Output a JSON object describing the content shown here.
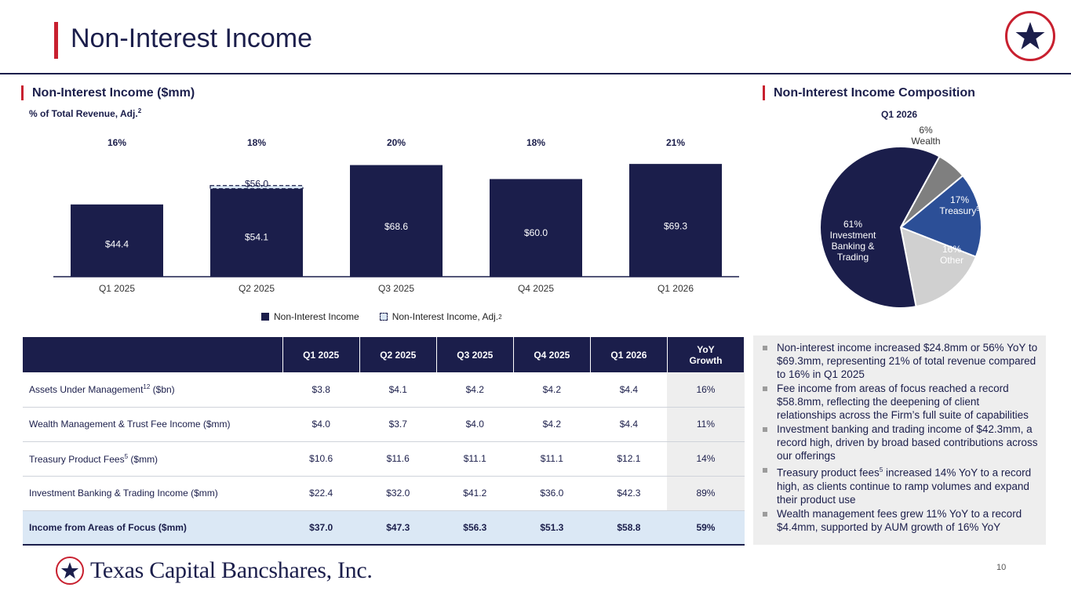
{
  "title": "Non-Interest Income",
  "left_section": {
    "heading": "Non-Interest Income ($mm)",
    "sub_label": "% of Total Revenue, Adj.",
    "sub_label_sup": "2"
  },
  "right_section": {
    "heading": "Non-Interest Income Composition",
    "pie_title": "Q1 2026"
  },
  "legend": {
    "item1": "Non-Interest Income",
    "item2": "Non-Interest Income, Adj.",
    "item2_sup": "2"
  },
  "chart_data": [
    {
      "type": "bar",
      "title": "Non-Interest Income ($mm)",
      "categories": [
        "Q1 2025",
        "Q2 2025",
        "Q3 2025",
        "Q4 2025",
        "Q1 2026"
      ],
      "series": [
        {
          "name": "Non-Interest Income",
          "values": [
            44.4,
            54.1,
            68.6,
            60.0,
            69.3
          ],
          "labels": [
            "$44.4",
            "$54.1",
            "$68.6",
            "$60.0",
            "$69.3"
          ],
          "color": "#1b1e4b"
        },
        {
          "name": "Non-Interest Income, Adj.",
          "values": [
            null,
            56.0,
            null,
            null,
            null
          ],
          "labels": [
            null,
            "$56.0",
            null,
            null,
            null
          ],
          "color": "#dbe8f5"
        }
      ],
      "top_labels": [
        "16%",
        "18%",
        "20%",
        "18%",
        "21%"
      ],
      "ylim": [
        0,
        80
      ]
    },
    {
      "type": "pie",
      "title": "Q1 2026",
      "slices": [
        {
          "label": "Wealth",
          "pct_label": "6%",
          "value": 6,
          "color": "#7f7f7f"
        },
        {
          "label": "Treasury",
          "label_sup": "5",
          "pct_label": "17%",
          "value": 17,
          "color": "#2c4f97"
        },
        {
          "label": "Other",
          "pct_label": "16%",
          "value": 16,
          "color": "#d0d0d0"
        },
        {
          "label": "Investment Banking & Trading",
          "pct_label": "61%",
          "value": 61,
          "color": "#1b1e4b"
        }
      ]
    }
  ],
  "table": {
    "headers": [
      "",
      "Q1 2025",
      "Q2 2025",
      "Q3 2025",
      "Q4 2025",
      "Q1 2026",
      "YoY",
      "Growth"
    ],
    "rows": [
      {
        "label": "Assets Under Management",
        "sup": "12",
        "suffix": " ($bn)",
        "values": [
          "$3.8",
          "$4.1",
          "$4.2",
          "$4.2",
          "$4.4"
        ],
        "yoy": "16%"
      },
      {
        "label": "Wealth Management & Trust Fee Income ($mm)",
        "sup": "",
        "suffix": "",
        "values": [
          "$4.0",
          "$3.7",
          "$4.0",
          "$4.2",
          "$4.4"
        ],
        "yoy": "11%"
      },
      {
        "label": "Treasury Product Fees",
        "sup": "5",
        "suffix": " ($mm)",
        "values": [
          "$10.6",
          "$11.6",
          "$11.1",
          "$11.1",
          "$12.1"
        ],
        "yoy": "14%"
      },
      {
        "label": "Investment Banking & Trading Income ($mm)",
        "sup": "",
        "suffix": "",
        "values": [
          "$22.4",
          "$32.0",
          "$41.2",
          "$36.0",
          "$42.3"
        ],
        "yoy": "89%"
      },
      {
        "label": "Income from Areas of Focus ($mm)",
        "sup": "",
        "suffix": "",
        "values": [
          "$37.0",
          "$47.3",
          "$56.3",
          "$51.3",
          "$58.8"
        ],
        "yoy": "59%"
      }
    ]
  },
  "commentary": {
    "b1": "Non-interest income increased $24.8mm or 56% YoY to $69.3mm, representing 21% of total revenue compared to 16% in Q1 2025",
    "b2": "Fee income from areas of focus reached a record $58.8mm, reflecting the deepening of client relationships across the Firm’s full suite of capabilities",
    "b3": "Investment banking and trading income of $42.3mm, a record high, driven by broad based contributions across our offerings",
    "b4_pre": "Treasury product fees",
    "b4_sup": "5",
    "b4_post": " increased 14% YoY to a record high, as clients continue to ramp volumes and expand their product use",
    "b5": "Wealth management fees grew 11% YoY to a record $4.4mm, supported by AUM growth of 16% YoY"
  },
  "footer": {
    "company": "Texas Capital Bancshares, Inc.",
    "page": "10"
  },
  "colors": {
    "navy": "#1b1e4b",
    "red": "#c8202f",
    "blue": "#2c4f97",
    "gray": "#7f7f7f",
    "light_gray": "#d0d0d0",
    "light_blue": "#dbe8f5"
  }
}
